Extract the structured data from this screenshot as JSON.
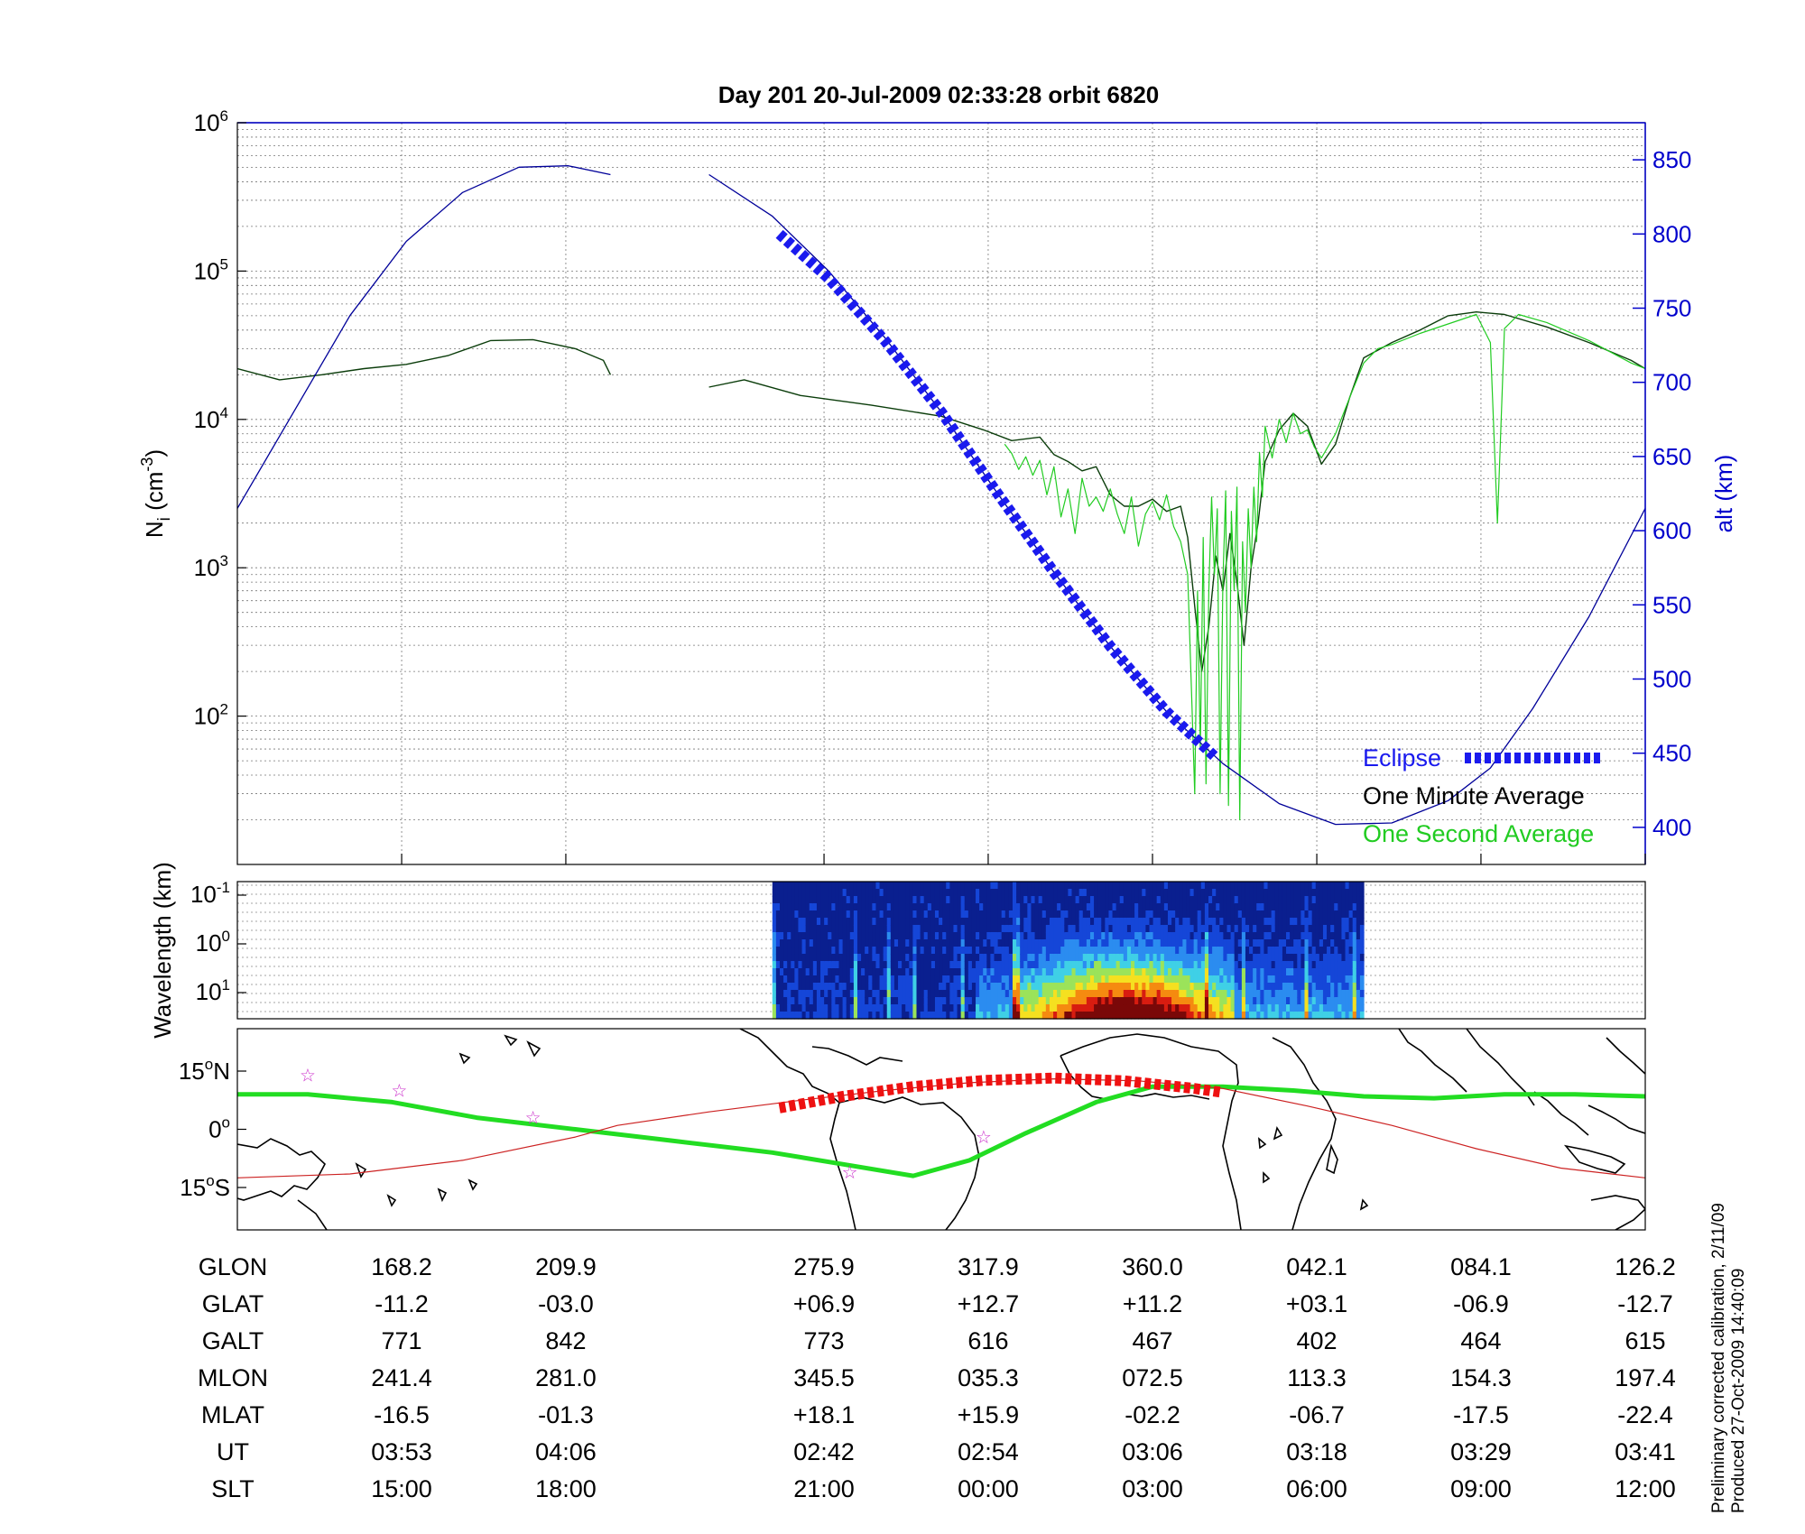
{
  "chart_data": [
    {
      "type": "line",
      "title": "Day 201  20-Jul-2009 02:33:28   orbit 6820",
      "ylabel_left": "N",
      "ylabel_left_sub": "i",
      "ylabel_left_unit": "(cm",
      "ylabel_left_exp": "-3",
      "ylabel_left_close": ")",
      "ylabel_right": "alt (km)",
      "y_scale": "log",
      "ylim": [
        10,
        1000000
      ],
      "y_ticks": [
        {
          "base": "10",
          "exp": "6",
          "value": 1000000
        },
        {
          "base": "10",
          "exp": "5",
          "value": 100000
        },
        {
          "base": "10",
          "exp": "4",
          "value": 10000
        },
        {
          "base": "10",
          "exp": "3",
          "value": 1000
        },
        {
          "base": "10",
          "exp": "2",
          "value": 100
        }
      ],
      "y2lim": [
        375,
        875
      ],
      "y2_ticks": [
        "850",
        "800",
        "750",
        "700",
        "650",
        "600",
        "550",
        "500",
        "450",
        "400"
      ],
      "xlim": [
        0,
        1
      ],
      "grid": true,
      "legend_position": "bottom-right",
      "legend": [
        {
          "label": "Eclipse",
          "color": "#1a1aee"
        },
        {
          "label": "One Minute Average",
          "color": "#000000"
        },
        {
          "label": "One Second Average",
          "color": "#22cc22"
        }
      ],
      "series": [
        {
          "name": "One Minute Average",
          "color": "#0b3d0b",
          "y_axis": "left",
          "x": [
            0.0,
            0.03,
            0.06,
            0.09,
            0.12,
            0.15,
            0.18,
            0.21,
            0.24,
            0.26,
            0.265
          ],
          "y": [
            22000,
            18500,
            20000,
            22000,
            23500,
            27000,
            34000,
            34500,
            30000,
            25000,
            20000
          ]
        },
        {
          "name": "One Minute Average",
          "color": "#0b3d0b",
          "y_axis": "left",
          "x": [
            0.335,
            0.36,
            0.4,
            0.45,
            0.5,
            0.53,
            0.55,
            0.57,
            0.58,
            0.59,
            0.6,
            0.61,
            0.62,
            0.63,
            0.64,
            0.65,
            0.66,
            0.67,
            0.675,
            0.68,
            0.685,
            0.69,
            0.695,
            0.7,
            0.705,
            0.71,
            0.715,
            0.72,
            0.725,
            0.73,
            0.74,
            0.75,
            0.76,
            0.77,
            0.78,
            0.79,
            0.8,
            0.82,
            0.84,
            0.86,
            0.88,
            0.9,
            0.93,
            0.96,
            0.99,
            1.0
          ],
          "y": [
            16500,
            18500,
            14500,
            12500,
            10500,
            8500,
            7200,
            7600,
            5800,
            5200,
            4500,
            4800,
            3100,
            2600,
            2600,
            2900,
            2400,
            2600,
            1600,
            550,
            200,
            400,
            1200,
            700,
            1700,
            800,
            300,
            1000,
            2000,
            5200,
            8500,
            11000,
            9000,
            5000,
            6800,
            14000,
            26000,
            33000,
            40000,
            50000,
            53000,
            51000,
            42000,
            33000,
            25000,
            22000
          ]
        },
        {
          "name": "One Second Average",
          "color": "#22cc22",
          "y_axis": "left",
          "x": [
            0.545,
            0.55,
            0.555,
            0.56,
            0.565,
            0.57,
            0.575,
            0.58,
            0.585,
            0.59,
            0.595,
            0.6,
            0.605,
            0.61,
            0.615,
            0.62,
            0.625,
            0.63,
            0.635,
            0.64,
            0.645,
            0.65,
            0.655,
            0.66,
            0.665,
            0.67,
            0.675,
            0.678,
            0.68,
            0.682,
            0.684,
            0.686,
            0.688,
            0.69,
            0.692,
            0.694,
            0.696,
            0.698,
            0.7,
            0.702,
            0.704,
            0.706,
            0.708,
            0.71,
            0.712,
            0.714,
            0.716,
            0.718,
            0.72,
            0.722,
            0.724,
            0.726,
            0.728,
            0.73,
            0.735,
            0.74,
            0.745,
            0.75,
            0.755,
            0.76,
            0.765,
            0.77,
            0.78,
            0.79,
            0.8,
            0.81,
            0.82,
            0.84,
            0.86,
            0.88,
            0.89,
            0.895,
            0.9,
            0.91,
            0.93,
            0.96,
            0.99,
            1.0
          ],
          "y": [
            6800,
            5900,
            4600,
            5600,
            4200,
            5300,
            3100,
            4800,
            2200,
            3400,
            1700,
            4000,
            2600,
            3000,
            2400,
            3400,
            2300,
            1700,
            3000,
            1400,
            2300,
            2800,
            2100,
            3100,
            1900,
            1500,
            900,
            120,
            30,
            700,
            60,
            1600,
            35,
            700,
            3000,
            900,
            2500,
            30,
            800,
            3300,
            25,
            2400,
            700,
            3500,
            20,
            1500,
            500,
            2500,
            1000,
            3500,
            1500,
            6000,
            3000,
            9000,
            5500,
            10000,
            7000,
            11000,
            8000,
            8500,
            6500,
            5500,
            8000,
            14000,
            24000,
            30000,
            32000,
            38000,
            44000,
            51000,
            33000,
            2000,
            41000,
            51000,
            45000,
            34000,
            24000,
            22000
          ]
        },
        {
          "name": "alt (km)",
          "color": "#000099",
          "y_axis": "right",
          "x": [
            0.0,
            0.04,
            0.08,
            0.12,
            0.16,
            0.2,
            0.235,
            0.265
          ],
          "y": [
            615,
            680,
            745,
            795,
            828,
            845,
            846,
            840
          ]
        },
        {
          "name": "alt (km)",
          "color": "#000099",
          "y_axis": "right",
          "x": [
            0.335,
            0.38,
            0.42,
            0.46,
            0.5,
            0.54,
            0.58,
            0.62,
            0.66,
            0.7,
            0.74,
            0.78,
            0.82,
            0.86,
            0.89,
            0.92,
            0.96,
            1.0
          ],
          "y": [
            840,
            812,
            775,
            730,
            680,
            625,
            572,
            522,
            478,
            443,
            416,
            402,
            403,
            418,
            440,
            480,
            542,
            615
          ]
        },
        {
          "name": "Eclipse",
          "color": "#1a1aee",
          "y_axis": "right",
          "x": [
            0.385,
            0.42,
            0.46,
            0.5,
            0.54,
            0.58,
            0.62,
            0.66,
            0.695
          ],
          "y": [
            800,
            770,
            728,
            680,
            625,
            572,
            522,
            478,
            447
          ]
        }
      ]
    },
    {
      "type": "heatmap",
      "ylabel": "Wavelength (km)",
      "y_ticks": [
        {
          "base": "10",
          "exp": "-1"
        },
        {
          "base": "10",
          "exp": "0"
        },
        {
          "base": "10",
          "exp": "1"
        }
      ],
      "data_x_range": [
        0.38,
        0.8
      ],
      "colormap": [
        "#0a1f8f",
        "#1546d8",
        "#2b8cf0",
        "#3fd0e6",
        "#9be35a",
        "#f5e020",
        "#f58a10",
        "#d81c10",
        "#7a0808"
      ]
    },
    {
      "type": "line",
      "kind": "map",
      "y_ticks": [
        {
          "value": "15",
          "unit": "N",
          "lat": 15
        },
        {
          "value": "0",
          "unit": "",
          "lat": 0
        },
        {
          "value": "15",
          "unit": "S",
          "lat": -15
        }
      ],
      "series": [
        {
          "name": "magnetic equator",
          "color": "#22dd22",
          "x": [
            0.0,
            0.05,
            0.11,
            0.17,
            0.24,
            0.31,
            0.38,
            0.43,
            0.48,
            0.52,
            0.56,
            0.61,
            0.65,
            0.7,
            0.75,
            0.8,
            0.85,
            0.9,
            0.95,
            1.0
          ],
          "y": [
            9,
            9,
            7,
            3,
            0,
            -3,
            -6,
            -9,
            -12,
            -8,
            -1,
            7,
            11,
            11,
            10,
            8.5,
            8,
            9,
            9,
            8.5
          ]
        },
        {
          "name": "ground track",
          "color": "#cc2222",
          "x": [
            0.0,
            0.08,
            0.16,
            0.24,
            0.27,
            0.335,
            0.4,
            0.46,
            0.52,
            0.58,
            0.64,
            0.7,
            0.76,
            0.82,
            0.88,
            0.94,
            1.0
          ],
          "y": [
            -12.5,
            -11.5,
            -8,
            -2,
            1,
            4.5,
            7.5,
            10,
            12,
            13,
            12.5,
            10.5,
            6,
            1,
            -5,
            -10,
            -12.5
          ]
        },
        {
          "name": "eclipse track",
          "color": "#ee1111",
          "x": [
            0.385,
            0.43,
            0.48,
            0.53,
            0.58,
            0.63,
            0.68,
            0.7
          ],
          "y": [
            5.5,
            8.5,
            11,
            12.6,
            13.2,
            12.5,
            10.5,
            9.5
          ]
        }
      ],
      "markers": [
        {
          "x": 0.05,
          "y": 14,
          "symbol": "☆"
        },
        {
          "x": 0.115,
          "y": 10,
          "symbol": "☆"
        },
        {
          "x": 0.21,
          "y": 3,
          "symbol": "☆"
        },
        {
          "x": 0.435,
          "y": -11,
          "symbol": "☆"
        },
        {
          "x": 0.53,
          "y": -2,
          "symbol": "☆"
        }
      ]
    },
    {
      "type": "table",
      "rows": [
        {
          "label": "GLON",
          "values": [
            "168.2",
            "209.9",
            "275.9",
            "317.9",
            "360.0",
            "042.1",
            "084.1",
            "126.2"
          ]
        },
        {
          "label": "GLAT",
          "values": [
            "-11.2",
            "-03.0",
            "+06.9",
            "+12.7",
            "+11.2",
            "+03.1",
            "-06.9",
            "-12.7"
          ]
        },
        {
          "label": "GALT",
          "values": [
            "771",
            "842",
            "773",
            "616",
            "467",
            "402",
            "464",
            "615"
          ]
        },
        {
          "label": "MLON",
          "values": [
            "241.4",
            "281.0",
            "345.5",
            "035.3",
            "072.5",
            "113.3",
            "154.3",
            "197.4"
          ]
        },
        {
          "label": "MLAT",
          "values": [
            "-16.5",
            "-01.3",
            "+18.1",
            "+15.9",
            "-02.2",
            "-06.7",
            "-17.5",
            "-22.4"
          ]
        },
        {
          "label": "UT",
          "values": [
            "03:53",
            "04:06",
            "02:42",
            "02:54",
            "03:06",
            "03:18",
            "03:29",
            "03:41"
          ]
        },
        {
          "label": "SLT",
          "values": [
            "15:00",
            "18:00",
            "21:00",
            "00:00",
            "03:00",
            "06:00",
            "09:00",
            "12:00"
          ]
        }
      ],
      "column_x": [
        0.1167,
        0.2333,
        0.4167,
        0.5333,
        0.65,
        0.7667,
        0.8833,
        1.0
      ]
    }
  ],
  "side_notes": {
    "line1": "Preliminary corrected calibration, 2/11/09",
    "line2": "Produced 27-Oct-2009 14:40:09"
  }
}
